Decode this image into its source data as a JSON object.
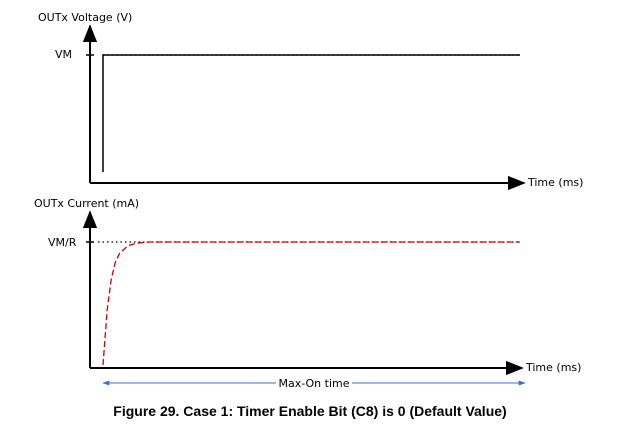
{
  "chart_data": [
    {
      "type": "line",
      "ylabel": "OUTx Voltage (V)",
      "xlabel": "Time (ms)",
      "y_reference_label": "VM",
      "series": [
        {
          "color": "#000000",
          "style": "solid",
          "x": [
            0,
            0,
            1
          ],
          "y": [
            0,
            1,
            1
          ]
        }
      ],
      "reference_line": {
        "y": 1,
        "style": "dotted",
        "color": "#000000"
      },
      "xlim": [
        0,
        1
      ],
      "ylim": [
        0,
        1.12
      ],
      "grid": false
    },
    {
      "type": "line",
      "ylabel": "OUTx Current (mA)",
      "xlabel": "Time (ms)",
      "y_reference_label": "VM/R",
      "series": [
        {
          "color": "#cc0000",
          "style": "dashed",
          "shape": "exponential rise then constant",
          "x": [
            0,
            0.01,
            0.02,
            0.03,
            0.04,
            0.06,
            0.08,
            0.11,
            1
          ],
          "y": [
            0,
            0.45,
            0.7,
            0.84,
            0.91,
            0.97,
            0.99,
            1,
            1
          ]
        }
      ],
      "reference_line": {
        "y": 1,
        "style": "dotted",
        "color": "#000000"
      },
      "xlim": [
        0,
        1
      ],
      "ylim": [
        0,
        1.12
      ],
      "grid": false
    }
  ],
  "span_annotation": {
    "label": "Max-On time",
    "color": "#3a6fd8"
  },
  "caption": "Figure 29.  Case 1: Timer Enable Bit (C8) is 0 (Default Value)"
}
